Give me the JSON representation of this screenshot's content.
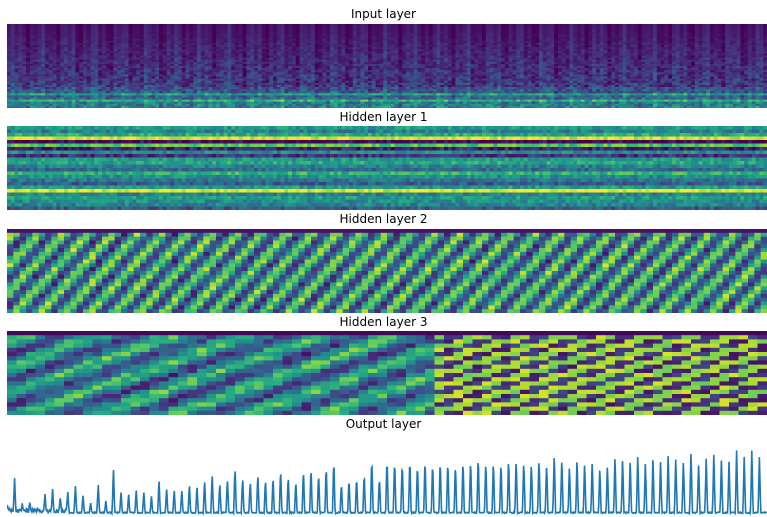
{
  "chart_data": [
    {
      "type": "heatmap",
      "title": "Input layer",
      "colormap": "viridis",
      "rows": 40,
      "cols": 200,
      "description_of_pattern": "spectrogram: low values (dark purple) at top rows, brighter green/yellow bands concentrated in bottom rows"
    },
    {
      "type": "heatmap",
      "title": "Hidden layer 1",
      "colormap": "viridis",
      "rows": 24,
      "cols": 200,
      "description_of_pattern": "horizontal bands: bright yellow rows near top and near bottom, dark purple rows in between, teal/green elsewhere"
    },
    {
      "type": "heatmap",
      "title": "Hidden layer 2",
      "colormap": "viridis",
      "rows": 22,
      "cols": 120,
      "description_of_pattern": "periodic checkerboard-like diagonal stripes of teal, green and yellow"
    },
    {
      "type": "heatmap",
      "title": "Hidden layer 3",
      "colormap": "viridis",
      "rows": 20,
      "cols": 80,
      "description_of_pattern": "dark purple top row, mixed teal/green; right half shows alternating yellow/blue block pattern"
    },
    {
      "type": "line",
      "title": "Output layer",
      "color": "#1f77b4",
      "peaks": [
        {
          "x": 0.0,
          "y": 0.11
        },
        {
          "x": 0.01,
          "y": 0.43
        },
        {
          "x": 0.02,
          "y": 0.1
        },
        {
          "x": 0.03,
          "y": 0.13
        },
        {
          "x": 0.04,
          "y": 0.07
        },
        {
          "x": 0.05,
          "y": 0.22
        },
        {
          "x": 0.06,
          "y": 0.33
        },
        {
          "x": 0.07,
          "y": 0.2
        },
        {
          "x": 0.08,
          "y": 0.3
        },
        {
          "x": 0.09,
          "y": 0.38
        },
        {
          "x": 0.1,
          "y": 0.25
        },
        {
          "x": 0.11,
          "y": 0.15
        },
        {
          "x": 0.12,
          "y": 0.4
        },
        {
          "x": 0.13,
          "y": 0.18
        },
        {
          "x": 0.14,
          "y": 0.61
        },
        {
          "x": 0.15,
          "y": 0.3
        },
        {
          "x": 0.16,
          "y": 0.27
        },
        {
          "x": 0.17,
          "y": 0.33
        },
        {
          "x": 0.18,
          "y": 0.3
        },
        {
          "x": 0.19,
          "y": 0.25
        },
        {
          "x": 0.2,
          "y": 0.46
        },
        {
          "x": 0.21,
          "y": 0.35
        },
        {
          "x": 0.22,
          "y": 0.33
        },
        {
          "x": 0.23,
          "y": 0.33
        },
        {
          "x": 0.24,
          "y": 0.4
        },
        {
          "x": 0.25,
          "y": 0.38
        },
        {
          "x": 0.26,
          "y": 0.46
        },
        {
          "x": 0.27,
          "y": 0.55
        },
        {
          "x": 0.28,
          "y": 0.42
        },
        {
          "x": 0.29,
          "y": 0.48
        },
        {
          "x": 0.3,
          "y": 0.63
        },
        {
          "x": 0.31,
          "y": 0.5
        },
        {
          "x": 0.32,
          "y": 0.45
        },
        {
          "x": 0.33,
          "y": 0.55
        },
        {
          "x": 0.34,
          "y": 0.47
        },
        {
          "x": 0.35,
          "y": 0.5
        },
        {
          "x": 0.36,
          "y": 0.6
        },
        {
          "x": 0.37,
          "y": 0.52
        },
        {
          "x": 0.38,
          "y": 0.45
        },
        {
          "x": 0.39,
          "y": 0.6
        },
        {
          "x": 0.4,
          "y": 0.63
        },
        {
          "x": 0.41,
          "y": 0.55
        },
        {
          "x": 0.42,
          "y": 0.65
        },
        {
          "x": 0.43,
          "y": 0.73
        },
        {
          "x": 0.44,
          "y": 0.42
        },
        {
          "x": 0.45,
          "y": 0.48
        },
        {
          "x": 0.46,
          "y": 0.5
        },
        {
          "x": 0.47,
          "y": 0.55
        },
        {
          "x": 0.48,
          "y": 0.75
        },
        {
          "x": 0.49,
          "y": 0.5
        },
        {
          "x": 0.5,
          "y": 0.75
        },
        {
          "x": 0.51,
          "y": 0.73
        },
        {
          "x": 0.52,
          "y": 0.7
        },
        {
          "x": 0.53,
          "y": 0.75
        },
        {
          "x": 0.54,
          "y": 0.68
        },
        {
          "x": 0.55,
          "y": 0.75
        },
        {
          "x": 0.56,
          "y": 0.7
        },
        {
          "x": 0.57,
          "y": 0.73
        },
        {
          "x": 0.58,
          "y": 0.72
        },
        {
          "x": 0.59,
          "y": 0.68
        },
        {
          "x": 0.6,
          "y": 0.73
        },
        {
          "x": 0.61,
          "y": 0.74
        },
        {
          "x": 0.62,
          "y": 0.78
        },
        {
          "x": 0.63,
          "y": 0.72
        },
        {
          "x": 0.64,
          "y": 0.72
        },
        {
          "x": 0.65,
          "y": 0.7
        },
        {
          "x": 0.66,
          "y": 0.75
        },
        {
          "x": 0.67,
          "y": 0.75
        },
        {
          "x": 0.68,
          "y": 0.72
        },
        {
          "x": 0.69,
          "y": 0.7
        },
        {
          "x": 0.7,
          "y": 0.75
        },
        {
          "x": 0.71,
          "y": 0.68
        },
        {
          "x": 0.72,
          "y": 0.82
        },
        {
          "x": 0.73,
          "y": 0.75
        },
        {
          "x": 0.74,
          "y": 0.66
        },
        {
          "x": 0.75,
          "y": 0.75
        },
        {
          "x": 0.76,
          "y": 0.7
        },
        {
          "x": 0.77,
          "y": 0.72
        },
        {
          "x": 0.78,
          "y": 0.62
        },
        {
          "x": 0.79,
          "y": 0.66
        },
        {
          "x": 0.8,
          "y": 0.78
        },
        {
          "x": 0.81,
          "y": 0.75
        },
        {
          "x": 0.82,
          "y": 0.72
        },
        {
          "x": 0.83,
          "y": 0.8
        },
        {
          "x": 0.84,
          "y": 0.7
        },
        {
          "x": 0.85,
          "y": 0.75
        },
        {
          "x": 0.86,
          "y": 0.72
        },
        {
          "x": 0.87,
          "y": 0.8
        },
        {
          "x": 0.88,
          "y": 0.75
        },
        {
          "x": 0.89,
          "y": 0.7
        },
        {
          "x": 0.9,
          "y": 0.82
        },
        {
          "x": 0.91,
          "y": 0.66
        },
        {
          "x": 0.92,
          "y": 0.75
        },
        {
          "x": 0.93,
          "y": 0.8
        },
        {
          "x": 0.94,
          "y": 0.72
        },
        {
          "x": 0.95,
          "y": 0.7
        },
        {
          "x": 0.96,
          "y": 0.85
        },
        {
          "x": 0.97,
          "y": 0.76
        },
        {
          "x": 0.98,
          "y": 0.84
        },
        {
          "x": 0.99,
          "y": 0.75
        }
      ],
      "ylim": [
        0,
        1
      ],
      "grid": false
    }
  ]
}
